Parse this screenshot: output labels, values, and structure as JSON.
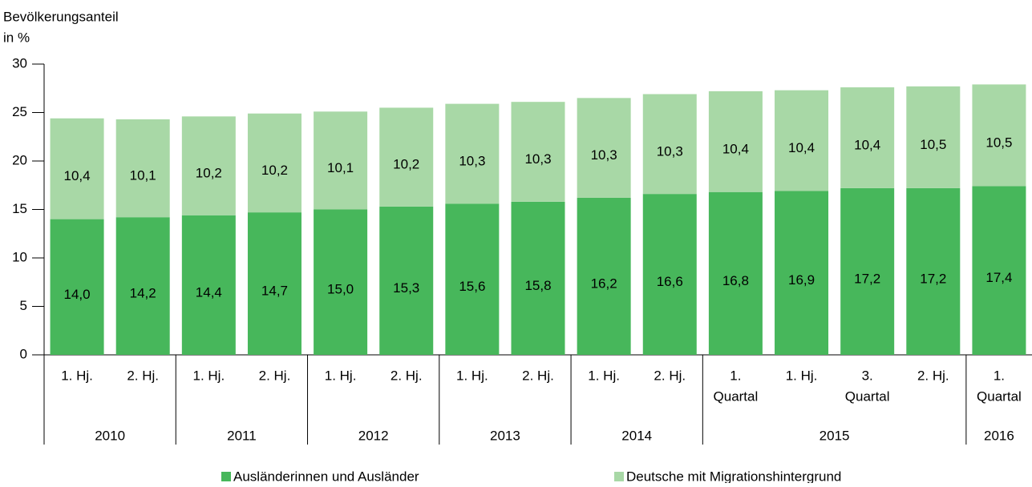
{
  "chart_data": {
    "type": "stacked_bar",
    "y_title": [
      "Bevölkerungsanteil",
      "in %"
    ],
    "groups": [
      {
        "name": "2010",
        "categories": [
          [
            "1. Hj."
          ],
          [
            "2. Hj."
          ]
        ]
      },
      {
        "name": "2011",
        "categories": [
          [
            "1. Hj."
          ],
          [
            "2. Hj."
          ]
        ]
      },
      {
        "name": "2012",
        "categories": [
          [
            "1. Hj."
          ],
          [
            "2. Hj."
          ]
        ]
      },
      {
        "name": "2013",
        "categories": [
          [
            "1. Hj."
          ],
          [
            "2. Hj."
          ]
        ]
      },
      {
        "name": "2014",
        "categories": [
          [
            "1. Hj."
          ],
          [
            "2. Hj."
          ]
        ]
      },
      {
        "name": "2015",
        "categories": [
          [
            "1.",
            "Quartal"
          ],
          [
            "1. Hj."
          ],
          [
            "3.",
            "Quartal"
          ],
          [
            "2. Hj."
          ]
        ]
      },
      {
        "name": "2016",
        "categories": [
          [
            "1.",
            "Quartal"
          ]
        ]
      }
    ],
    "series": [
      {
        "name": "Ausländerinnen und Ausländer",
        "color": "#47b75b",
        "values": [
          14.0,
          14.2,
          14.4,
          14.7,
          15.0,
          15.3,
          15.6,
          15.8,
          16.2,
          16.6,
          16.8,
          16.9,
          17.2,
          17.2,
          17.4
        ],
        "value_labels": [
          "14,0",
          "14,2",
          "14,4",
          "14,7",
          "15,0",
          "15,3",
          "15,6",
          "15,8",
          "16,2",
          "16,6",
          "16,8",
          "16,9",
          "17,2",
          "17,2",
          "17,4"
        ]
      },
      {
        "name": "Deutsche mit Migrationshintergrund",
        "color": "#a8d8a6",
        "values": [
          10.4,
          10.1,
          10.2,
          10.2,
          10.1,
          10.2,
          10.3,
          10.3,
          10.3,
          10.3,
          10.4,
          10.4,
          10.4,
          10.5,
          10.5
        ],
        "value_labels": [
          "10,4",
          "10,1",
          "10,2",
          "10,2",
          "10,1",
          "10,2",
          "10,3",
          "10,3",
          "10,3",
          "10,3",
          "10,4",
          "10,4",
          "10,4",
          "10,5",
          "10,5"
        ]
      }
    ],
    "ylim": [
      0,
      30
    ],
    "yticks": [
      0,
      5,
      10,
      15,
      20,
      25,
      30
    ],
    "legend": "bottom"
  }
}
